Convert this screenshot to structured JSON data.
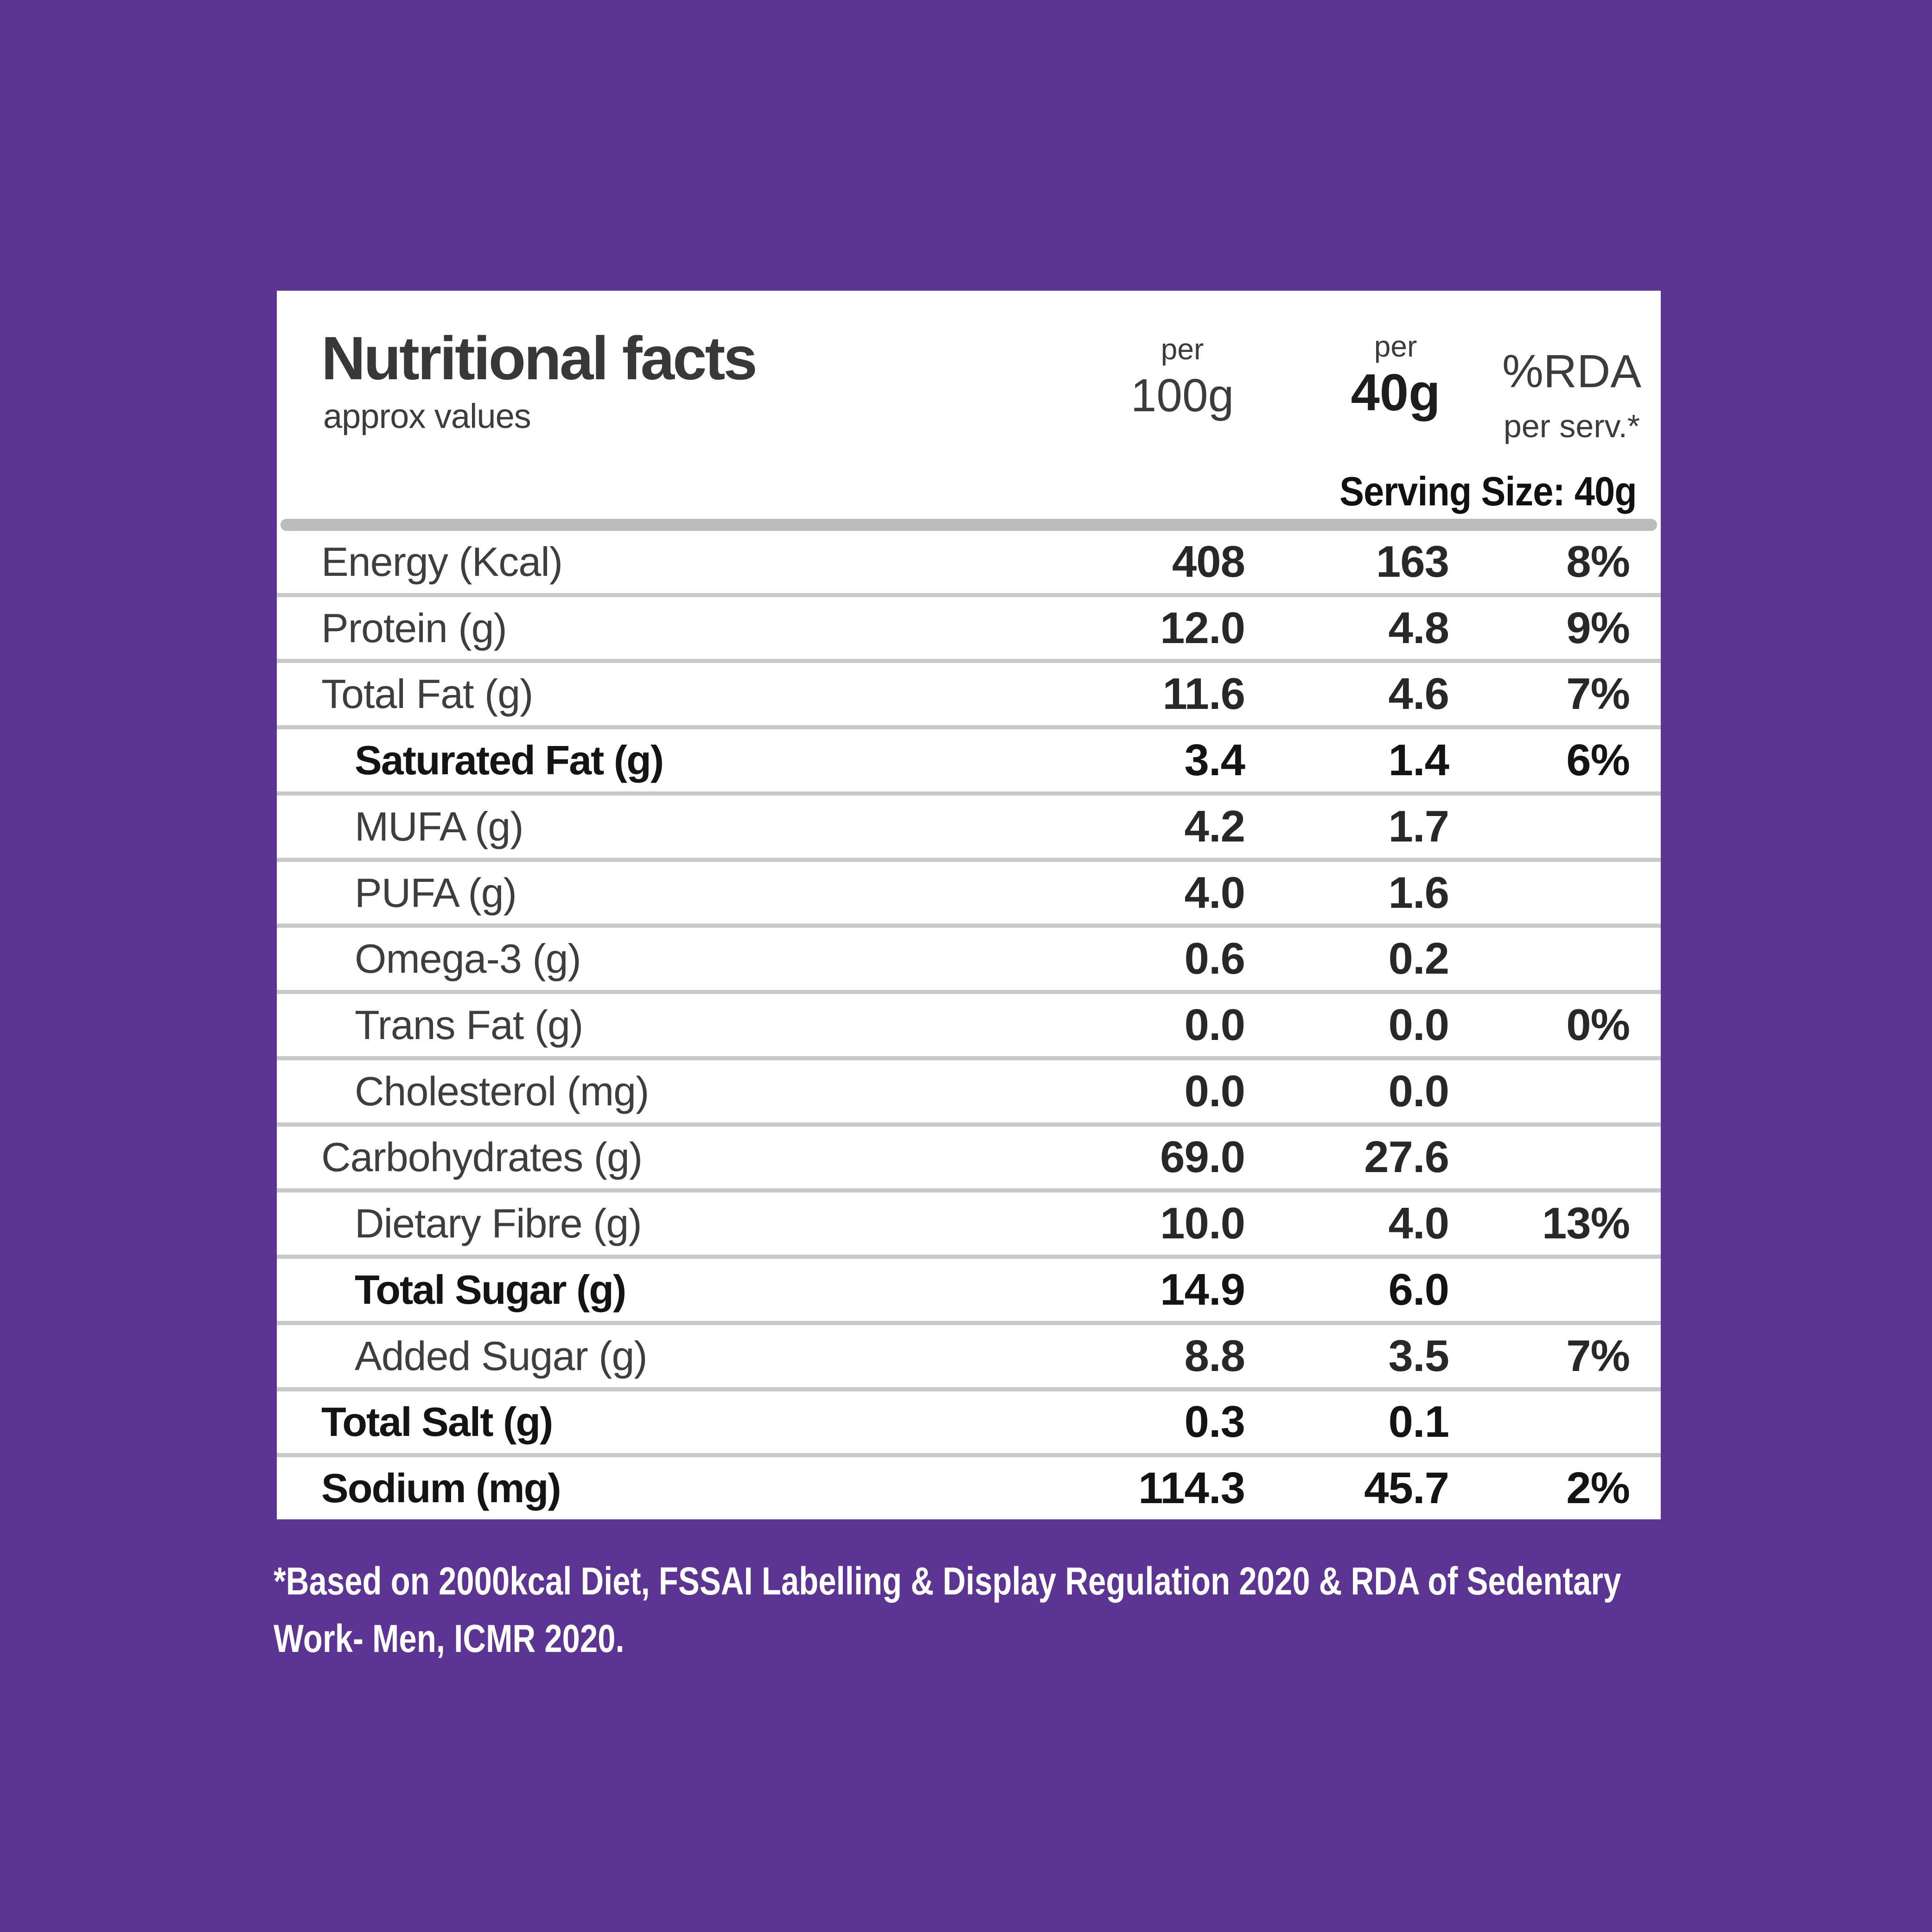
{
  "colors": {
    "background": "#5C3494",
    "card": "#FFFFFF",
    "heading_text": "#383838",
    "row_text": "#3E3E3E",
    "bold_text": "#141414",
    "divider": "#C9C9C9",
    "header_rule": "#BCBCBC",
    "footnote_text": "#FFFFFF"
  },
  "card": {
    "title": "Nutritional facts",
    "subtitle": "approx values",
    "columns": {
      "col1": {
        "top": "per",
        "unit": "100g"
      },
      "col2": {
        "top": "per",
        "unit": "40g"
      },
      "col3": {
        "top": "%RDA",
        "unit": "per serv.*"
      }
    },
    "serving_size": "Serving Size: 40g",
    "rows": [
      {
        "label": "Energy (Kcal)",
        "per100g": "408",
        "per40g": "163",
        "rda": "8%"
      },
      {
        "label": "Protein (g)",
        "per100g": "12.0",
        "per40g": "4.8",
        "rda": "9%"
      },
      {
        "label": "Total Fat (g)",
        "per100g": "11.6",
        "per40g": "4.6",
        "rda": "7%"
      },
      {
        "label": "Saturated Fat (g)",
        "per100g": "3.4",
        "per40g": "1.4",
        "rda": "6%"
      },
      {
        "label": "MUFA (g)",
        "per100g": "4.2",
        "per40g": "1.7",
        "rda": ""
      },
      {
        "label": "PUFA (g)",
        "per100g": "4.0",
        "per40g": "1.6",
        "rda": ""
      },
      {
        "label": "Omega-3 (g)",
        "per100g": "0.6",
        "per40g": "0.2",
        "rda": ""
      },
      {
        "label": "Trans Fat (g)",
        "per100g": "0.0",
        "per40g": "0.0",
        "rda": "0%"
      },
      {
        "label": "Cholesterol (mg)",
        "per100g": "0.0",
        "per40g": "0.0",
        "rda": ""
      },
      {
        "label": "Carbohydrates (g)",
        "per100g": "69.0",
        "per40g": "27.6",
        "rda": ""
      },
      {
        "label": "Dietary Fibre (g)",
        "per100g": "10.0",
        "per40g": "4.0",
        "rda": "13%"
      },
      {
        "label": "Total Sugar (g)",
        "per100g": "14.9",
        "per40g": "6.0",
        "rda": ""
      },
      {
        "label": "Added Sugar (g)",
        "per100g": "8.8",
        "per40g": "3.5",
        "rda": "7%"
      },
      {
        "label": "Total Salt (g)",
        "per100g": "0.3",
        "per40g": "0.1",
        "rda": ""
      },
      {
        "label": "Sodium (mg)",
        "per100g": "114.3",
        "per40g": "45.7",
        "rda": "2%"
      }
    ]
  },
  "footnote": {
    "lines": [
      "*Based on 2000kcal Diet, FSSAI Labelling & Display Regulation 2020 & RDA of Sedentary",
      "Work- Men, ICMR 2020."
    ]
  }
}
